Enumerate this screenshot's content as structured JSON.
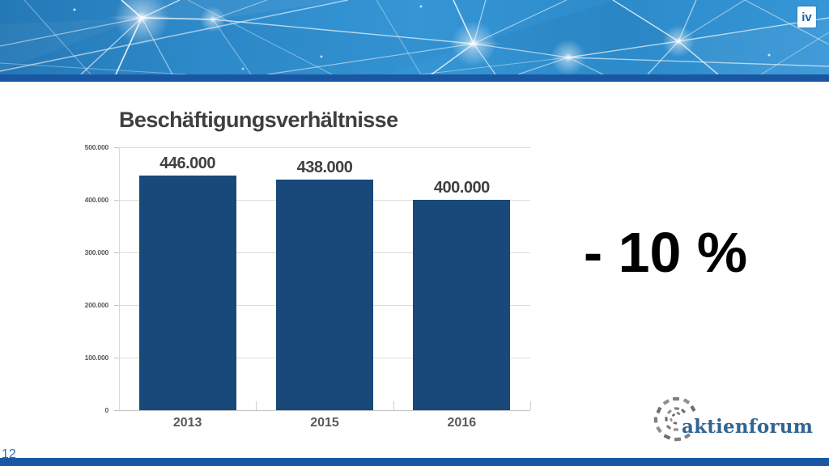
{
  "header": {
    "iv_logo": "iv"
  },
  "chart_data": {
    "type": "bar",
    "title": "Beschäftigungsverhältnisse",
    "categories": [
      "2013",
      "2015",
      "2016"
    ],
    "values": [
      446000,
      438000,
      400000
    ],
    "value_labels": [
      "446.000",
      "438.000",
      "400.000"
    ],
    "y_tick_labels": [
      "500.000",
      "400.000",
      "300.000",
      "200.000",
      "100.000",
      "0"
    ],
    "ylim": [
      0,
      500000
    ],
    "grid": true,
    "legend": false,
    "bar_color": "#19497a"
  },
  "annotation": {
    "text": "- 10 %"
  },
  "branding": {
    "logo_text": "aktienforum",
    "logo_color": "#326590"
  },
  "footer": {
    "page_number": "12"
  }
}
